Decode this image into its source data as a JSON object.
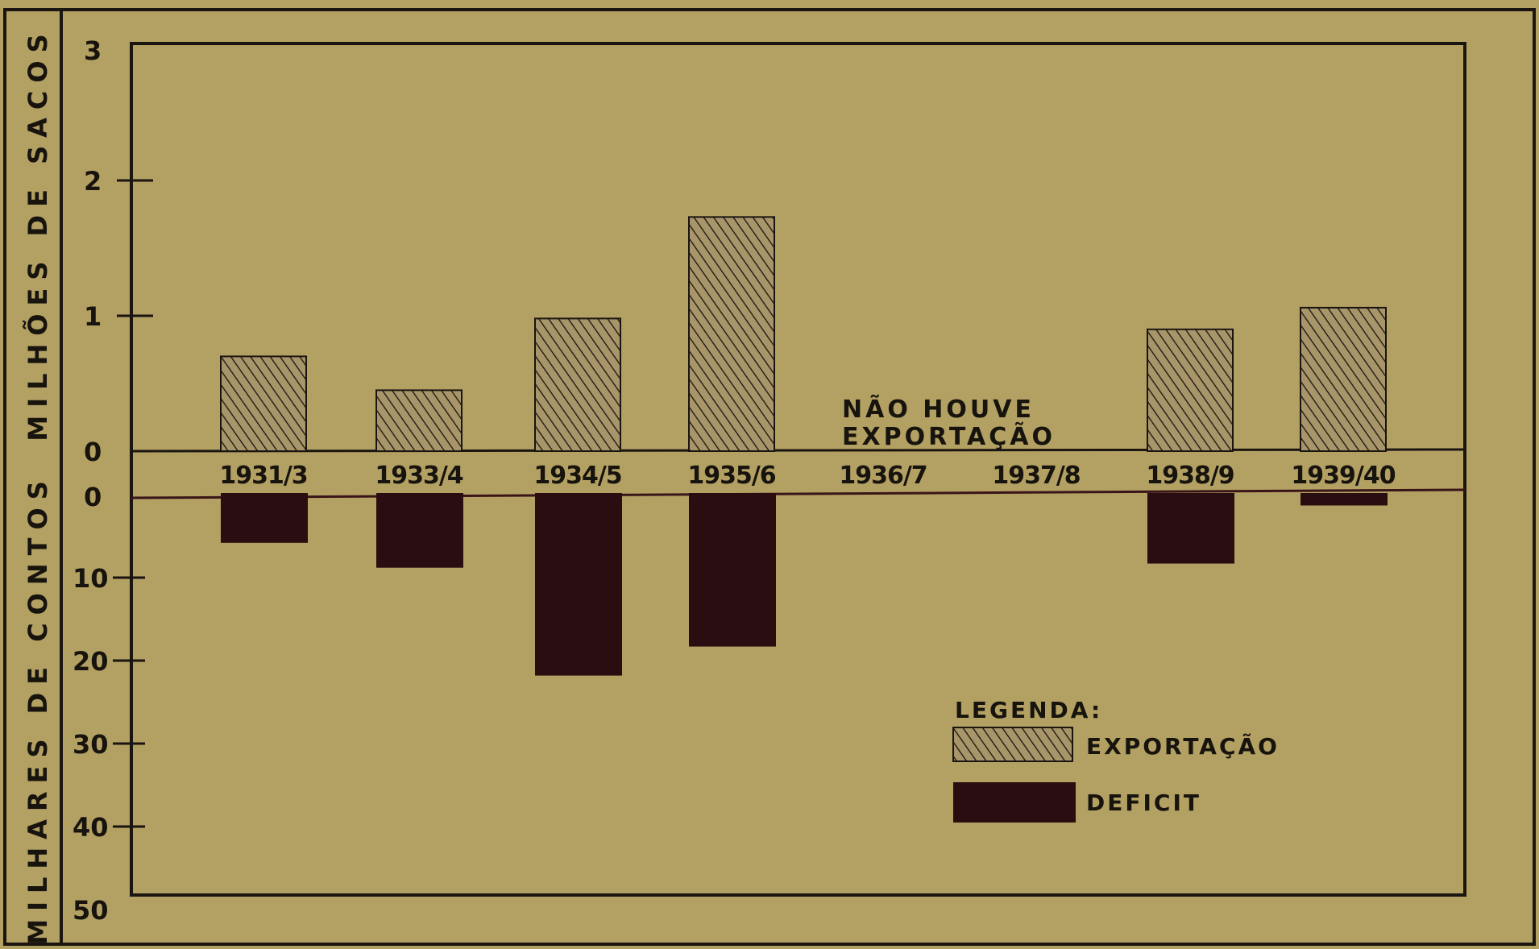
{
  "chart_data": {
    "type": "bar",
    "categories": [
      "1931/3",
      "1933/4",
      "1934/5",
      "1935/6",
      "1936/7",
      "1937/8",
      "1938/9",
      "1939/40"
    ],
    "series": [
      {
        "name": "EXPORTAÇÃO",
        "panel": "top",
        "values": [
          0.7,
          0.45,
          0.98,
          1.73,
          null,
          null,
          0.9,
          1.06
        ],
        "color": "#9a8a5a",
        "pattern": "diagonal-hatch"
      },
      {
        "name": "DEFICIT",
        "panel": "bottom",
        "values": [
          6,
          9,
          22,
          18.5,
          null,
          null,
          8.5,
          1.5
        ],
        "color": "#2a0d10"
      }
    ],
    "top_axis": {
      "label": "MILHÕES DE SACOS",
      "ticks": [
        "3",
        "2",
        "1",
        "0"
      ],
      "ylim": [
        0,
        3
      ]
    },
    "bottom_axis": {
      "label": "MILHARES DE CONTOS",
      "ticks": [
        "0",
        "10",
        "20",
        "30",
        "40",
        "50"
      ],
      "ylim": [
        0,
        50
      ]
    },
    "annotation": [
      "NÃO HOUVE",
      "EXPORTAÇÃO"
    ],
    "legend": {
      "title": "LEGENDA:",
      "items": [
        "EXPORTAÇÃO",
        "DEFICIT"
      ],
      "position": "bottom-right"
    },
    "grid": false
  }
}
